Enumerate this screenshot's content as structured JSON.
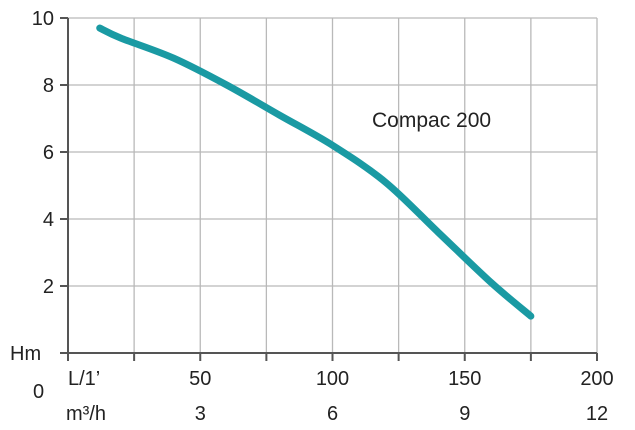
{
  "chart_data": {
    "type": "line",
    "series": [
      {
        "name": "Compac 200",
        "x": [
          12,
          20,
          40,
          60,
          80,
          100,
          120,
          140,
          160,
          175
        ],
        "y": [
          9.7,
          9.4,
          8.8,
          8.0,
          7.1,
          6.2,
          5.1,
          3.6,
          2.1,
          1.1
        ]
      }
    ],
    "xlim": [
      0,
      200
    ],
    "ylim": [
      0,
      10
    ],
    "x_ticks": [
      0,
      25,
      50,
      75,
      100,
      125,
      150,
      175,
      200
    ],
    "x_tick_labels": [
      {
        "value": 50,
        "label": "50"
      },
      {
        "value": 100,
        "label": "100"
      },
      {
        "value": 150,
        "label": "150"
      },
      {
        "value": 200,
        "label": "200"
      }
    ],
    "y_ticks": [
      0,
      2,
      4,
      6,
      8,
      10
    ],
    "y_tick_labels": [
      {
        "value": 2,
        "label": "2"
      },
      {
        "value": 4,
        "label": "4"
      },
      {
        "value": 6,
        "label": "6"
      },
      {
        "value": 8,
        "label": "8"
      },
      {
        "value": 10,
        "label": "10"
      }
    ],
    "ylabel": "Hm",
    "xlabel": "L/1’",
    "xlabel2": "m³/h",
    "secondary_x_tick_labels": [
      {
        "value": 50,
        "label": "3"
      },
      {
        "value": 100,
        "label": "6"
      },
      {
        "value": 150,
        "label": "9"
      },
      {
        "value": 200,
        "label": "12"
      }
    ],
    "origin_label": "0",
    "grid": true,
    "colors": {
      "series": "#1a9aa3",
      "grid": "#b9b9b9",
      "axis": "#555555",
      "text": "#222222"
    }
  }
}
